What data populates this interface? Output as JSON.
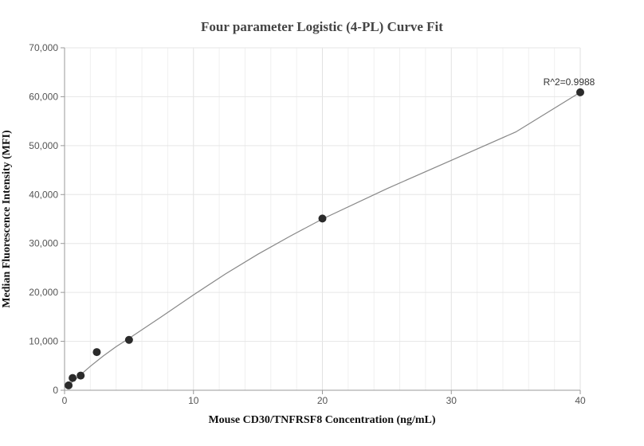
{
  "chart_data": {
    "type": "scatter",
    "title": "Four parameter Logistic (4-PL) Curve Fit",
    "xlabel": "Mouse CD30/TNFRSF8 Concentration (ng/mL)",
    "ylabel": "Median Fluorescence Intensity (MFI)",
    "xlim": [
      0,
      40
    ],
    "ylim": [
      0,
      70000
    ],
    "x_ticks": [
      0,
      10,
      20,
      30,
      40
    ],
    "y_ticks": [
      0,
      10000,
      20000,
      30000,
      40000,
      50000,
      60000,
      70000
    ],
    "x_tick_labels": [
      "0",
      "10",
      "20",
      "30",
      "40"
    ],
    "y_tick_labels": [
      "0",
      "10,000",
      "20,000",
      "30,000",
      "40,000",
      "50,000",
      "60,000",
      "70,000"
    ],
    "grid": true,
    "points": [
      {
        "x": 0.3125,
        "y": 1000
      },
      {
        "x": 0.625,
        "y": 2500
      },
      {
        "x": 1.25,
        "y": 3000
      },
      {
        "x": 2.5,
        "y": 7800
      },
      {
        "x": 5,
        "y": 10300
      },
      {
        "x": 20,
        "y": 35100
      },
      {
        "x": 40,
        "y": 60900
      }
    ],
    "fit_curve": [
      {
        "x": 0.3125,
        "y": 1100
      },
      {
        "x": 1,
        "y": 2600
      },
      {
        "x": 2,
        "y": 4900
      },
      {
        "x": 3,
        "y": 7000
      },
      {
        "x": 4,
        "y": 8900
      },
      {
        "x": 5,
        "y": 10600
      },
      {
        "x": 7.5,
        "y": 15000
      },
      {
        "x": 10,
        "y": 19500
      },
      {
        "x": 12.5,
        "y": 23800
      },
      {
        "x": 15,
        "y": 27800
      },
      {
        "x": 17.5,
        "y": 31500
      },
      {
        "x": 20,
        "y": 35000
      },
      {
        "x": 25,
        "y": 41200
      },
      {
        "x": 30,
        "y": 47000
      },
      {
        "x": 35,
        "y": 52800
      },
      {
        "x": 40,
        "y": 60900
      }
    ],
    "annotation": "R^2=0.9988",
    "colors": {
      "point": "#2b2b2b",
      "curve": "#888888",
      "grid": "#e6e6e6",
      "axis": "#999999"
    }
  }
}
